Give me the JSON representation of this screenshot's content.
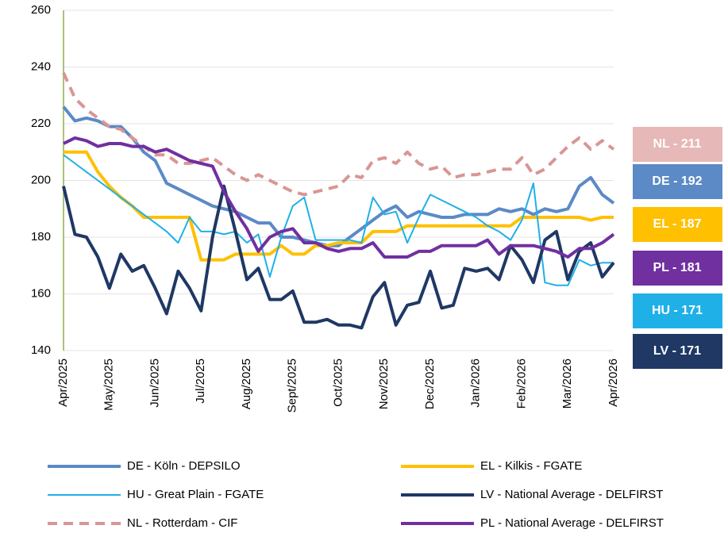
{
  "chart_data": {
    "type": "line",
    "categories": [
      "Apr/2025",
      null,
      null,
      null,
      "May/2025",
      null,
      null,
      null,
      "Jun/2025",
      null,
      null,
      null,
      "Jul/2025",
      null,
      null,
      null,
      "Aug/2025",
      null,
      null,
      null,
      "Sept/2025",
      null,
      null,
      null,
      "Oct/2025",
      null,
      null,
      null,
      "Nov/2025",
      null,
      null,
      null,
      "Dec/2025",
      null,
      null,
      null,
      "Jan/2026",
      null,
      null,
      null,
      "Feb/2026",
      null,
      null,
      null,
      "Mar/2026",
      null,
      null,
      null,
      "Apr/2026"
    ],
    "ylim": [
      140,
      260
    ],
    "yticks": [
      140,
      160,
      180,
      200,
      220,
      240,
      260
    ],
    "grid": true,
    "series": [
      {
        "name": "DE - Köln - DEPSILO",
        "color": "#5b8ac6",
        "width": 4,
        "dashed": false,
        "values": [
          226,
          221,
          222,
          221,
          219,
          219,
          215,
          210,
          207,
          199,
          197,
          195,
          193,
          191,
          190,
          189,
          187,
          185,
          185,
          180,
          180,
          179,
          178,
          177,
          177,
          180,
          183,
          186,
          189,
          191,
          187,
          189,
          188,
          187,
          187,
          188,
          188,
          188,
          190,
          189,
          190,
          188,
          190,
          189,
          190,
          198,
          201,
          195,
          192
        ]
      },
      {
        "name": "EL - Kilkis - FGATE",
        "color": "#ffc000",
        "width": 4,
        "dashed": false,
        "values": [
          210,
          210,
          210,
          203,
          198,
          194,
          191,
          187,
          187,
          187,
          187,
          187,
          172,
          172,
          172,
          174,
          174,
          174,
          174,
          177,
          174,
          174,
          177,
          177,
          178,
          178,
          178,
          182,
          182,
          182,
          184,
          184,
          184,
          184,
          184,
          184,
          184,
          184,
          184,
          184,
          187,
          187,
          187,
          187,
          187,
          187,
          186,
          187,
          187
        ]
      },
      {
        "name": "HU - Great Plain - FGATE",
        "color": "#1fb0e8",
        "width": 2,
        "dashed": false,
        "values": [
          209,
          206,
          203,
          200,
          197,
          194,
          191,
          188,
          185,
          182,
          178,
          187,
          182,
          182,
          181,
          182,
          178,
          181,
          166,
          180,
          191,
          194,
          179,
          179,
          179,
          179,
          178,
          194,
          188,
          189,
          178,
          187,
          195,
          193,
          191,
          189,
          187,
          184,
          182,
          179,
          186,
          199,
          164,
          163,
          163,
          172,
          170,
          171,
          171
        ]
      },
      {
        "name": "LV - National Average - DELFIRST",
        "color": "#1f3864",
        "width": 4,
        "dashed": false,
        "values": [
          198,
          181,
          180,
          173,
          162,
          174,
          168,
          170,
          162,
          153,
          168,
          162,
          154,
          180,
          198,
          182,
          165,
          169,
          158,
          158,
          161,
          150,
          150,
          151,
          149,
          149,
          148,
          159,
          164,
          149,
          156,
          157,
          168,
          155,
          156,
          169,
          168,
          169,
          165,
          177,
          172,
          164,
          179,
          182,
          165,
          175,
          178,
          166,
          171
        ]
      },
      {
        "name": "NL - Rotterdam - CIF",
        "color": "#d99694",
        "width": 4,
        "dashed": true,
        "values": [
          238,
          229,
          225,
          222,
          219,
          218,
          215,
          212,
          209,
          209,
          206,
          206,
          207,
          208,
          205,
          202,
          200,
          202,
          200,
          198,
          196,
          195,
          196,
          197,
          198,
          202,
          201,
          207,
          208,
          206,
          210,
          206,
          204,
          205,
          201,
          202,
          202,
          203,
          204,
          204,
          208,
          202,
          204,
          208,
          212,
          215,
          211,
          214,
          211
        ]
      },
      {
        "name": "PL - National Average - DELFIRST",
        "color": "#7030a0",
        "width": 4,
        "dashed": false,
        "values": [
          213,
          215,
          214,
          212,
          213,
          213,
          212,
          212,
          210,
          211,
          209,
          207,
          206,
          205,
          196,
          189,
          183,
          175,
          180,
          182,
          183,
          178,
          178,
          176,
          175,
          176,
          176,
          178,
          173,
          173,
          173,
          175,
          175,
          177,
          177,
          177,
          177,
          179,
          174,
          177,
          177,
          177,
          176,
          175,
          173,
          176,
          176,
          178,
          181
        ]
      }
    ],
    "annotations": [
      {
        "text": "NL - 211",
        "color": "#e6b8b7"
      },
      {
        "text": "DE - 192",
        "color": "#5b8ac6"
      },
      {
        "text": "EL - 187",
        "color": "#ffc000"
      },
      {
        "text": "PL - 181",
        "color": "#7030a0"
      },
      {
        "text": "HU - 171",
        "color": "#1fb0e8"
      },
      {
        "text": "LV - 171",
        "color": "#1f3864"
      }
    ]
  }
}
